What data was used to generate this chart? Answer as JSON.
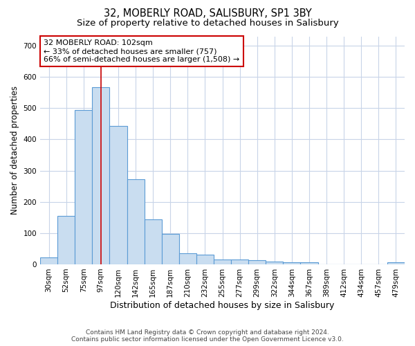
{
  "title": "32, MOBERLY ROAD, SALISBURY, SP1 3BY",
  "subtitle": "Size of property relative to detached houses in Salisbury",
  "xlabel": "Distribution of detached houses by size in Salisbury",
  "ylabel": "Number of detached properties",
  "footer_line1": "Contains HM Land Registry data © Crown copyright and database right 2024.",
  "footer_line2": "Contains public sector information licensed under the Open Government Licence v3.0.",
  "categories": [
    "30sqm",
    "52sqm",
    "75sqm",
    "97sqm",
    "120sqm",
    "142sqm",
    "165sqm",
    "187sqm",
    "210sqm",
    "232sqm",
    "255sqm",
    "277sqm",
    "299sqm",
    "322sqm",
    "344sqm",
    "367sqm",
    "389sqm",
    "412sqm",
    "434sqm",
    "457sqm",
    "479sqm"
  ],
  "values": [
    22,
    155,
    493,
    567,
    443,
    273,
    145,
    98,
    35,
    32,
    15,
    15,
    13,
    8,
    6,
    6,
    0,
    0,
    0,
    0,
    7
  ],
  "bar_color": "#c9ddf0",
  "bar_edge_color": "#5b9bd5",
  "annotation_line1": "32 MOBERLY ROAD: 102sqm",
  "annotation_line2": "← 33% of detached houses are smaller (757)",
  "annotation_line3": "66% of semi-detached houses are larger (1,508) →",
  "annotation_box_facecolor": "#ffffff",
  "annotation_box_edgecolor": "#cc0000",
  "red_line_x": 3.0,
  "ylim": [
    0,
    730
  ],
  "yticks": [
    0,
    100,
    200,
    300,
    400,
    500,
    600,
    700
  ],
  "bg_color": "#ffffff",
  "plot_bg_color": "#ffffff",
  "grid_color": "#c8d4e8",
  "title_fontsize": 10.5,
  "subtitle_fontsize": 9.5,
  "tick_fontsize": 7.5,
  "ylabel_fontsize": 8.5,
  "xlabel_fontsize": 9,
  "annotation_fontsize": 8,
  "footer_fontsize": 6.5
}
